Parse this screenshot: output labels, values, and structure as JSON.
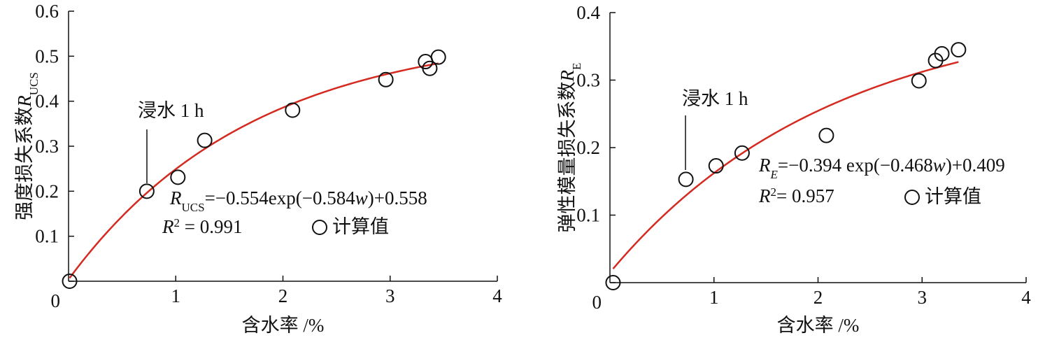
{
  "chart_data": [
    {
      "type": "scatter",
      "xlabel": "含水率 /%",
      "ylabel": [
        {
          "text": "强度损失系数"
        },
        {
          "text": "R",
          "style": "italic"
        },
        {
          "text": "UCS",
          "style": "sub"
        }
      ],
      "xlim": [
        0,
        4
      ],
      "xticks": [
        1,
        2,
        3,
        4
      ],
      "ylim": [
        0,
        0.6
      ],
      "yticks": [
        0,
        0.1,
        0.2,
        0.3,
        0.4,
        0.5,
        0.6
      ],
      "x": [
        0.01,
        0.73,
        1.02,
        1.27,
        2.09,
        2.96,
        3.33,
        3.37,
        3.45
      ],
      "series": [
        {
          "name": "计算值",
          "color": "#111111",
          "values": [
            0.0,
            0.2,
            0.231,
            0.313,
            0.38,
            0.448,
            0.488,
            0.473,
            0.498
          ]
        }
      ],
      "fit": {
        "a": -0.554,
        "b": -0.584,
        "c": 0.558,
        "color": "#d42a20"
      },
      "equation": [
        {
          "text": "R",
          "style": "italic"
        },
        {
          "text": "UCS",
          "style": "sub"
        },
        {
          "text": "=−0.554exp(−0.584"
        },
        {
          "text": "w",
          "style": "italic"
        },
        {
          "text": ")+0.558"
        }
      ],
      "r2": [
        {
          "text": "R",
          "style": "italic"
        },
        {
          "text": "2",
          "style": "sup"
        },
        {
          "text": " = 0.991"
        }
      ],
      "annotation": "浸水 1 h"
    },
    {
      "type": "scatter",
      "xlabel": "含水率 /%",
      "ylabel": [
        {
          "text": "弹性模量损失系数"
        },
        {
          "text": "R",
          "style": "italic"
        },
        {
          "text": "E",
          "style": "sub"
        }
      ],
      "xlim": [
        0,
        4
      ],
      "xticks": [
        1,
        2,
        3,
        4
      ],
      "ylim": [
        0,
        0.4
      ],
      "yticks": [
        0,
        0.1,
        0.2,
        0.3,
        0.4
      ],
      "x": [
        0.03,
        0.73,
        1.02,
        1.27,
        2.08,
        2.97,
        3.13,
        3.19,
        3.35
      ],
      "series": [
        {
          "name": "计算值",
          "color": "#111111",
          "values": [
            0.0,
            0.153,
            0.173,
            0.192,
            0.218,
            0.299,
            0.329,
            0.339,
            0.345
          ]
        }
      ],
      "fit": {
        "a": -0.394,
        "b": -0.468,
        "c": 0.409,
        "color": "#d42a20"
      },
      "equation": [
        {
          "text": "R",
          "style": "italic"
        },
        {
          "text": "E",
          "style": "italic-sub"
        },
        {
          "text": "=−0.394 exp(−0.468"
        },
        {
          "text": "w",
          "style": "italic"
        },
        {
          "text": ")+0.409"
        }
      ],
      "r2": [
        {
          "text": "R",
          "style": "italic"
        },
        {
          "text": "2",
          "style": "sup"
        },
        {
          "text": "= 0.957"
        }
      ],
      "annotation": "浸水 1 h"
    }
  ]
}
